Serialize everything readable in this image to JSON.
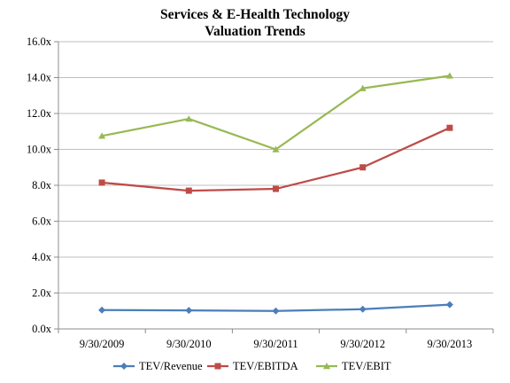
{
  "chart_data": {
    "type": "line",
    "title": [
      "Services & E-Health Technology",
      "Valuation Trends"
    ],
    "x": [
      "9/30/2009",
      "9/30/2010",
      "9/30/2011",
      "9/30/2012",
      "9/30/2013"
    ],
    "y_ticks": [
      "0.0x",
      "2.0x",
      "4.0x",
      "6.0x",
      "8.0x",
      "10.0x",
      "12.0x",
      "14.0x",
      "16.0x"
    ],
    "ylim": [
      0,
      16
    ],
    "grid": true,
    "legend_position": "bottom",
    "series": [
      {
        "name": "TEV/Revenue",
        "color": "#4a7ebb",
        "marker": "diamond",
        "values": [
          1.05,
          1.03,
          1.0,
          1.1,
          1.35
        ]
      },
      {
        "name": "TEV/EBITDA",
        "color": "#be4b48",
        "marker": "square",
        "values": [
          8.15,
          7.7,
          7.8,
          9.0,
          11.2
        ]
      },
      {
        "name": "TEV/EBIT",
        "color": "#98b954",
        "marker": "triangle",
        "values": [
          10.75,
          11.7,
          10.0,
          13.4,
          14.1
        ]
      }
    ]
  }
}
